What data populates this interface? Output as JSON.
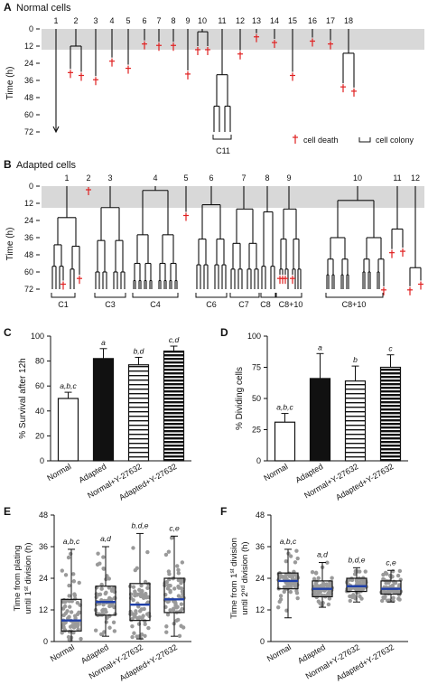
{
  "panel_a": {
    "letter": "A",
    "title": "Normal cells",
    "ylabel": "Time (h)",
    "ticks": [
      "0",
      "12",
      "24",
      "36",
      "48",
      "60",
      "72"
    ],
    "lineages": [
      "1",
      "2",
      "3",
      "4",
      "5",
      "6",
      "7",
      "8",
      "9",
      "10",
      "11",
      "12",
      "13",
      "14",
      "15",
      "16",
      "17",
      "18"
    ],
    "colony_label": "C11",
    "legend_death": "cell death",
    "legend_colony": "cell colony"
  },
  "panel_b": {
    "letter": "B",
    "title": "Adapted cells",
    "ylabel": "Time (h)",
    "ticks": [
      "0",
      "12",
      "24",
      "36",
      "48",
      "60",
      "72"
    ],
    "lineages": [
      "1",
      "2",
      "3",
      "4",
      "5",
      "6",
      "7",
      "8",
      "9",
      "10",
      "11",
      "12"
    ],
    "colonies": [
      "C1",
      "C3",
      "C4",
      "C6",
      "C7",
      "C8",
      "C8+10",
      "C8+10"
    ]
  },
  "chart_data": [
    {
      "panel": "C",
      "type": "bar",
      "ylabel": "% Survival after 12h",
      "ylim": [
        0,
        100
      ],
      "yticks": [
        "0",
        "20",
        "40",
        "60",
        "80",
        "100"
      ],
      "categories": [
        "Normal",
        "Adapted",
        "Normal+Y-27632",
        "Adapted+Y-27632"
      ],
      "values": [
        50,
        82,
        77,
        88
      ],
      "errors": [
        5,
        8,
        6,
        4
      ],
      "annotations": [
        "a,b,c",
        "a",
        "b,d",
        "c,d"
      ]
    },
    {
      "panel": "D",
      "type": "bar",
      "ylabel": "% Dividing cells",
      "ylim": [
        0,
        100
      ],
      "yticks": [
        "0",
        "25",
        "50",
        "75",
        "100"
      ],
      "categories": [
        "Normal",
        "Adapted",
        "Normal+Y-27632",
        "Adapted+Y-27632"
      ],
      "values": [
        31,
        66,
        64,
        75
      ],
      "errors": [
        7,
        20,
        12,
        10
      ],
      "annotations": [
        "a,b,c",
        "a",
        "b",
        "c"
      ]
    },
    {
      "panel": "E",
      "type": "box",
      "ylabel_line1": "Time from plating",
      "ylabel_line2_pre": "until 1",
      "ylabel_line2_sup": "st",
      "ylabel_line2_post": " division (h)",
      "ylim": [
        0,
        48
      ],
      "yticks": [
        "0",
        "12",
        "24",
        "36",
        "48"
      ],
      "categories": [
        "Normal",
        "Adapted",
        "Normal+Y-27632",
        "Adapted+Y-27632"
      ],
      "boxes": [
        {
          "min": 0,
          "q1": 4,
          "median": 8,
          "q3": 16,
          "max": 35
        },
        {
          "min": 2,
          "q1": 10,
          "median": 15,
          "q3": 21,
          "max": 36
        },
        {
          "min": 1,
          "q1": 8,
          "median": 14,
          "q3": 22,
          "max": 41
        },
        {
          "min": 2,
          "q1": 11,
          "median": 16,
          "q3": 24,
          "max": 40
        }
      ],
      "annotations": [
        "a,b,c",
        "a,d",
        "b,d,e",
        "c,e"
      ]
    },
    {
      "panel": "F",
      "type": "box",
      "ylabel_line1_pre": "Time from 1",
      "ylabel_line1_sup": "st",
      "ylabel_line1_post": " division",
      "ylabel_line2_pre": "until 2",
      "ylabel_line2_sup": "nd",
      "ylabel_line2_post": " division (h)",
      "ylim": [
        0,
        48
      ],
      "yticks": [
        "0",
        "12",
        "24",
        "36",
        "48"
      ],
      "categories": [
        "Normal",
        "Adapted",
        "Normal+Y-27632",
        "Adapted+Y-27632"
      ],
      "boxes": [
        {
          "min": 9,
          "q1": 20,
          "median": 23,
          "q3": 26,
          "max": 35
        },
        {
          "min": 13,
          "q1": 17,
          "median": 20,
          "q3": 23,
          "max": 30
        },
        {
          "min": 15,
          "q1": 19,
          "median": 21,
          "q3": 24,
          "max": 28
        },
        {
          "min": 15,
          "q1": 18,
          "median": 20,
          "q3": 23,
          "max": 27
        }
      ],
      "annotations": [
        "a,b,c",
        "a,d",
        "b,d,e",
        "c,e"
      ]
    }
  ],
  "panel_letters": {
    "c": "C",
    "d": "D",
    "e": "E",
    "f": "F"
  }
}
